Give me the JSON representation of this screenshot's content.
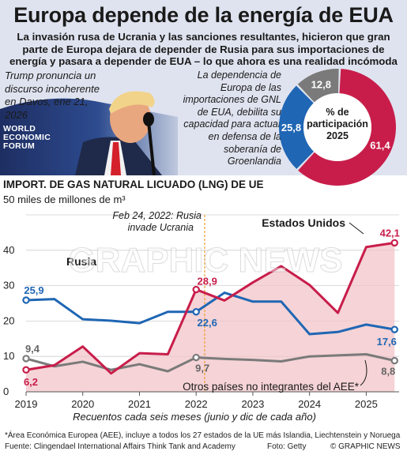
{
  "header": {
    "title": "Europa depende de la energía de EUA",
    "intro": "La invasión rusa de Ucrania y las sanciones resultantes, hicieron que gran parte de Europa dejara de depender de Rusia para sus importaciones de energía y pasara a depender de EUA – lo que ahora es una realidad incómoda"
  },
  "photo": {
    "caption": "Trump pronuncia un discurso incoherente en Davos, ene 21, 2026",
    "logo_text": "WORLD ECONOMIC FORUM"
  },
  "side_note": "La dependencia de Europa de las importaciones de GNL de EUA, debilita su capacidad para actuar en defensa de la soberanía de Groenlandia",
  "donut": {
    "center_line1": "% de",
    "center_line2": "participación",
    "center_line3": "2025",
    "slices": [
      {
        "label": "61,4",
        "value": 61.4,
        "color": "#c81d4a"
      },
      {
        "label": "25,8",
        "value": 25.8,
        "color": "#1f66b4"
      },
      {
        "label": "12,8",
        "value": 12.8,
        "color": "#7a7a7a"
      }
    ]
  },
  "watermark": "GRAPHIC NEWS",
  "chart_data": {
    "type": "line",
    "title": "IMPORT. DE GAS NATURAL LICUADO (LNG) DE UE",
    "subtitle": "50 miles de millones de  m³",
    "xlabel": "Recuentos cada seis meses (junio y dic de cada año)",
    "ylabel": "",
    "ylim": [
      0,
      50
    ],
    "yticks": [
      "0",
      "10",
      "20",
      "30",
      "40"
    ],
    "xlim": [
      2019.0,
      2025.58
    ],
    "xticks": [
      "2019",
      "2020",
      "2021",
      "2022",
      "2023",
      "2024",
      "2025"
    ],
    "x": [
      2019.0,
      2019.5,
      2020.0,
      2020.5,
      2021.0,
      2021.5,
      2022.0,
      2022.5,
      2023.0,
      2023.5,
      2024.0,
      2024.5,
      2025.0,
      2025.5
    ],
    "series": [
      {
        "name": "Estados Unidos",
        "color": "#c81d4a",
        "values": [
          6.2,
          7.5,
          12.8,
          5.2,
          10.9,
          10.6,
          28.9,
          25.8,
          30.9,
          35.5,
          30.2,
          22.3,
          40.9,
          42.1
        ]
      },
      {
        "name": "Rusia",
        "color": "#1f66b4",
        "values": [
          25.9,
          26.2,
          20.5,
          20.1,
          19.4,
          22.6,
          22.6,
          28.0,
          25.5,
          25.5,
          16.3,
          16.9,
          19.0,
          17.6
        ]
      },
      {
        "name": "Otros países no integrantes del AEE*",
        "color": "#7a7a7a",
        "values": [
          9.4,
          7.2,
          8.5,
          6.2,
          7.8,
          5.8,
          9.7,
          9.3,
          9.0,
          8.6,
          10.0,
          10.3,
          10.6,
          8.8
        ]
      }
    ],
    "event": {
      "x": 2022.15,
      "label1": "Feb 24, 2022: Rusia",
      "label2": "invade Ucrania"
    },
    "labels": {
      "us_first": "6,2",
      "us_2022": "28,9",
      "us_last": "42,1",
      "ru_first": "25,9",
      "ru_2022": "22,6",
      "ru_last": "17,6",
      "ot_first": "9,4",
      "ot_2022": "9,7",
      "ot_last": "8,8"
    }
  },
  "footer": {
    "note": "*Área Económica Europea (AEE), incluye a todos los 27 estados de la UE más Islandia, Liechtenstein y Noruega",
    "source": "Fuente: Clingendael International Affairs Think Tank and Academy",
    "credit": "Foto: Getty",
    "copyright": "© GRAPHIC NEWS"
  }
}
